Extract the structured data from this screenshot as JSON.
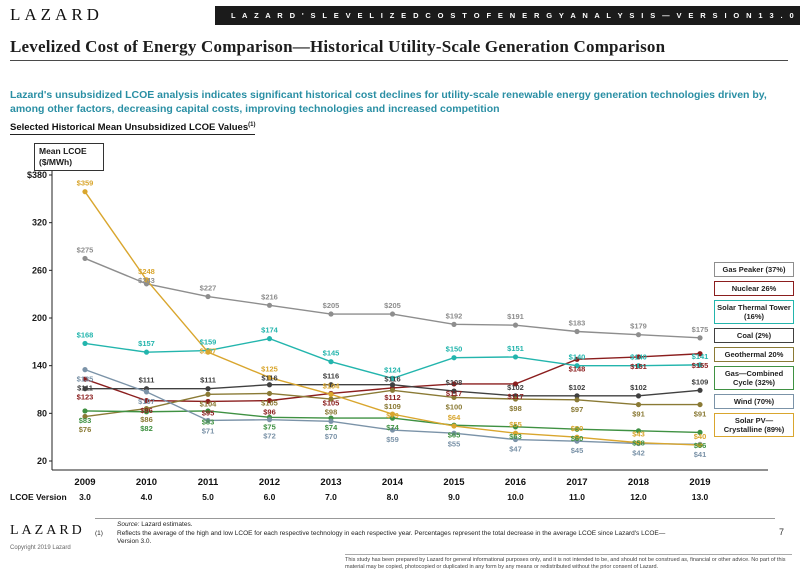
{
  "header": {
    "logo_text": "LAZARD",
    "banner_text": "L A Z A R D ' S   L E V E L I Z E D   C O S T   O F   E N E R G Y   A N A L Y S I S — V E R S I O N   1 3 . 0"
  },
  "title": {
    "text": "Levelized Cost of Energy Comparison—Historical Utility-Scale Generation Comparison"
  },
  "subtitle": {
    "text": "Lazard's unsubsidized LCOE analysis indicates significant historical cost declines for utility-scale renewable energy generation technologies driven by, among other factors, decreasing capital costs, improving technologies and increased competition"
  },
  "section": {
    "label": "Selected Historical Mean Unsubsidized LCOE Values",
    "superscript": "(1)"
  },
  "colors": {
    "banner_bg": "#1b1b1b",
    "subtitle_text": "#2a8fa4",
    "axis": "#222222"
  },
  "chart_data": {
    "type": "line",
    "title": "Selected Historical Mean Unsubsidized LCOE Values",
    "ylabel": "Mean LCOE ($/MWh)",
    "ylim": [
      20,
      380
    ],
    "ytick_values": [
      380,
      320,
      260,
      200,
      140,
      80,
      20
    ],
    "ytick_labels": [
      "$380",
      "320",
      "260",
      "200",
      "140",
      "80",
      "20"
    ],
    "grid": false,
    "legend_position": "right",
    "x_axis_label": "LCOE Version",
    "years": [
      "2009",
      "2010",
      "2011",
      "2012",
      "2013",
      "2014",
      "2015",
      "2016",
      "2017",
      "2018",
      "2019"
    ],
    "versions": [
      "3.0",
      "4.0",
      "5.0",
      "6.0",
      "7.0",
      "8.0",
      "9.0",
      "10.0",
      "11.0",
      "12.0",
      "13.0"
    ],
    "series": [
      {
        "key": "gas_peaker",
        "name": "Gas Peaker (37%)",
        "color": "#8e8e8e",
        "values": [
          275,
          243,
          227,
          216,
          205,
          205,
          192,
          191,
          183,
          179,
          175
        ]
      },
      {
        "key": "nuclear",
        "name": "Nuclear 26%",
        "color": "#8b1e1e",
        "values": [
          123,
          96,
          95,
          96,
          105,
          112,
          117,
          117,
          148,
          151,
          155
        ]
      },
      {
        "key": "solar_thermal",
        "name": "Solar Thermal Tower (16%)",
        "color": "#23b5ad",
        "values": [
          168,
          157,
          159,
          174,
          145,
          124,
          150,
          151,
          140,
          140,
          141
        ]
      },
      {
        "key": "coal",
        "name": "Coal (2%)",
        "color": "#404040",
        "values": [
          111,
          111,
          111,
          116,
          116,
          116,
          108,
          102,
          102,
          102,
          109
        ]
      },
      {
        "key": "geothermal",
        "name": "Geothermal 20%",
        "color": "#8a7a35",
        "values": [
          76,
          86,
          104,
          105,
          98,
          109,
          100,
          98,
          97,
          91,
          91
        ]
      },
      {
        "key": "gas_cc",
        "name": "Gas—Combined Cycle (32%)",
        "color": "#3f9142",
        "values": [
          83,
          82,
          83,
          75,
          74,
          74,
          65,
          63,
          60,
          58,
          56
        ]
      },
      {
        "key": "wind",
        "name": "Wind (70%)",
        "color": "#7b93a8",
        "values": [
          135,
          107,
          71,
          72,
          70,
          59,
          55,
          47,
          45,
          42,
          41
        ]
      },
      {
        "key": "solar_pv",
        "name": "Solar PV—Crystalline (89%)",
        "color": "#d9a62e",
        "values": [
          359,
          248,
          157,
          125,
          104,
          79,
          64,
          55,
          50,
          43,
          40
        ]
      }
    ]
  },
  "footer": {
    "logo_text": "LAZARD",
    "copyright": "Copyright 2019 Lazard",
    "source_label": "Source:",
    "source_value": "Lazard estimates.",
    "footnote_number": "(1)",
    "footnote_text": "Reflects the average of the high and low LCOE for each respective technology in each respective year. Percentages represent the total decrease in the average LCOE since Lazard's LCOE—Version 3.0.",
    "page_number": "7",
    "disclaimer": "This study has been prepared by Lazard for general informational purposes only, and it is not intended to be, and should not be construed as, financial or other advice. No part of this material may be copied, photocopied or duplicated in any form by any means or redistributed without the prior consent of Lazard."
  }
}
